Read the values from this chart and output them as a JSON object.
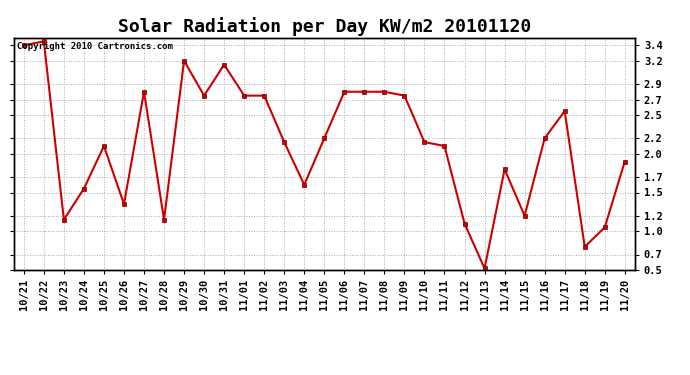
{
  "title": "Solar Radiation per Day KW/m2 20101120",
  "copyright": "Copyright 2010 Cartronics.com",
  "labels": [
    "10/21",
    "10/22",
    "10/23",
    "10/24",
    "10/25",
    "10/26",
    "10/27",
    "10/28",
    "10/29",
    "10/30",
    "10/31",
    "11/01",
    "11/02",
    "11/03",
    "11/04",
    "11/05",
    "11/06",
    "11/07",
    "11/08",
    "11/09",
    "11/10",
    "11/11",
    "11/12",
    "11/13",
    "11/14",
    "11/15",
    "11/16",
    "11/17",
    "11/18",
    "11/19",
    "11/20"
  ],
  "values": [
    3.4,
    3.45,
    1.15,
    1.55,
    2.1,
    1.35,
    2.8,
    1.15,
    3.2,
    2.75,
    3.15,
    2.75,
    2.75,
    2.15,
    1.6,
    2.2,
    2.8,
    2.8,
    2.8,
    2.75,
    2.15,
    2.1,
    1.1,
    0.52,
    1.8,
    1.2,
    2.2,
    2.55,
    0.8,
    1.05,
    1.9
  ],
  "ylim": [
    0.5,
    3.5
  ],
  "yticks": [
    0.5,
    0.7,
    1.0,
    1.2,
    1.5,
    1.7,
    2.0,
    2.2,
    2.5,
    2.7,
    2.9,
    3.2,
    3.4
  ],
  "line_color": "#cc0000",
  "marker": "s",
  "marker_size": 2.5,
  "bg_color": "#ffffff",
  "grid_color": "#aaaaaa",
  "title_fontsize": 13,
  "copyright_fontsize": 6.5,
  "tick_fontsize": 7.5
}
